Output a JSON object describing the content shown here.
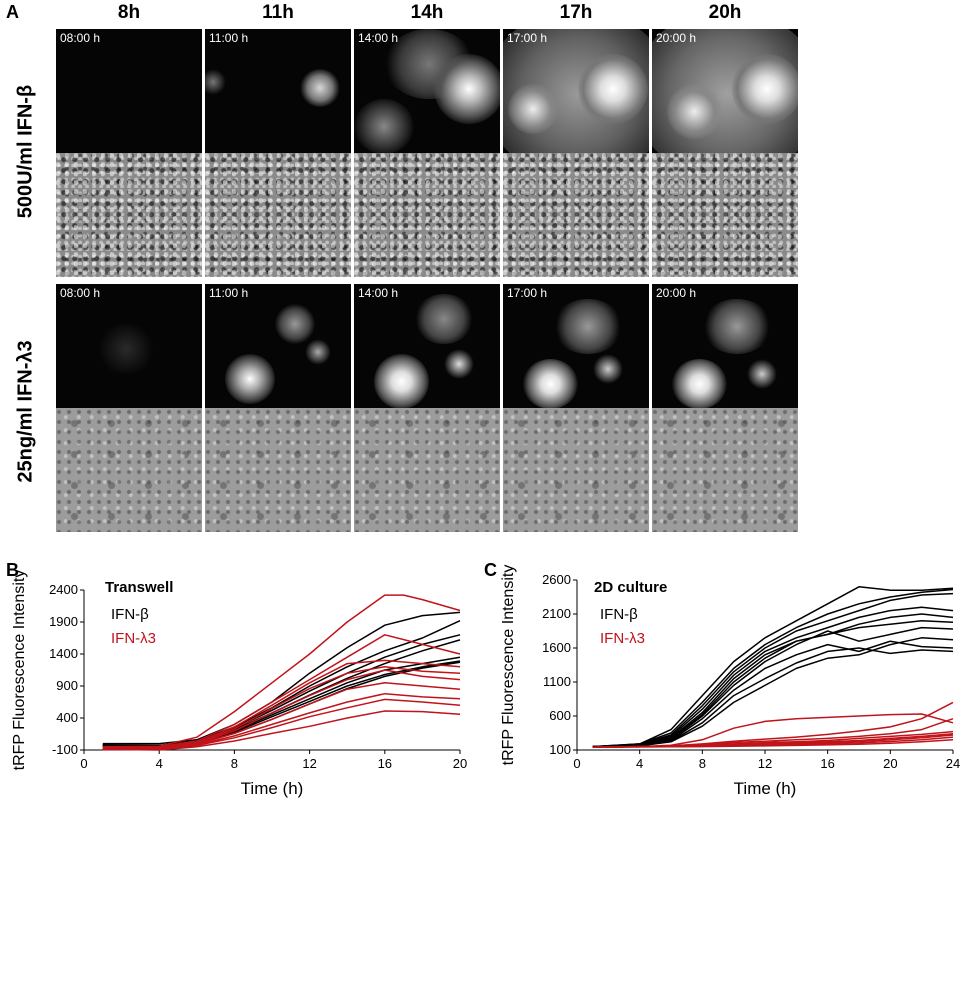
{
  "panel_a": {
    "letter": "A",
    "column_headers": [
      "8h",
      "11h",
      "14h",
      "17h",
      "20h"
    ],
    "row_labels": [
      "500U/ml IFN-β",
      "25ng/ml IFN-λ3"
    ],
    "time_labels": [
      "08:00 h",
      "11:00 h",
      "14:00 h",
      "17:00 h",
      "20:00 h"
    ]
  },
  "chart_data": [
    {
      "panel": "B",
      "type": "line",
      "title": "Transwell",
      "xlabel": "Time (h)",
      "ylabel": "tRFP Fluorescence Intensity",
      "xlim": [
        0,
        20
      ],
      "ylim": [
        -100,
        2400
      ],
      "xticks": [
        0,
        4,
        8,
        12,
        16,
        20
      ],
      "yticks": [
        -100,
        400,
        900,
        1400,
        1900,
        2400
      ],
      "legend": [
        {
          "label": "IFN-β",
          "color": "#000000"
        },
        {
          "label": "IFN-λ3",
          "color": "#c0141b"
        }
      ],
      "series": [
        {
          "name": "IFN-β 1",
          "color": "#000000",
          "x": [
            1,
            4,
            6,
            8,
            10,
            12,
            14,
            16,
            18,
            20
          ],
          "y": [
            0,
            0,
            60,
            300,
            650,
            1100,
            1500,
            1850,
            2000,
            2050
          ]
        },
        {
          "name": "IFN-β 2",
          "color": "#000000",
          "x": [
            1,
            4,
            6,
            8,
            10,
            12,
            14,
            16,
            18,
            20
          ],
          "y": [
            -20,
            -30,
            40,
            260,
            560,
            900,
            1200,
            1450,
            1650,
            1920
          ]
        },
        {
          "name": "IFN-β 3",
          "color": "#000000",
          "x": [
            1,
            4,
            6,
            8,
            10,
            12,
            14,
            16,
            18,
            20
          ],
          "y": [
            -30,
            -30,
            30,
            240,
            520,
            820,
            1100,
            1350,
            1550,
            1700
          ]
        },
        {
          "name": "IFN-β 4",
          "color": "#000000",
          "x": [
            1,
            4,
            6,
            8,
            10,
            12,
            14,
            16,
            18,
            20
          ],
          "y": [
            -40,
            -40,
            20,
            220,
            480,
            760,
            1020,
            1250,
            1450,
            1620
          ]
        },
        {
          "name": "IFN-β 5",
          "color": "#000000",
          "x": [
            1,
            4,
            6,
            8,
            10,
            12,
            14,
            16,
            18,
            20
          ],
          "y": [
            -20,
            -40,
            20,
            200,
            450,
            700,
            950,
            1150,
            1250,
            1350
          ]
        },
        {
          "name": "IFN-β 6",
          "color": "#000000",
          "x": [
            1,
            4,
            6,
            8,
            10,
            12,
            14,
            16,
            18,
            20
          ],
          "y": [
            -40,
            -40,
            10,
            180,
            420,
            660,
            900,
            1080,
            1200,
            1290
          ]
        },
        {
          "name": "IFN-β 7",
          "color": "#000000",
          "x": [
            1,
            4,
            6,
            8,
            10,
            12,
            14,
            16,
            18,
            20
          ],
          "y": [
            -50,
            -50,
            0,
            160,
            380,
            620,
            860,
            1050,
            1180,
            1270
          ]
        },
        {
          "name": "IFN-λ3 1",
          "color": "#c0141b",
          "x": [
            1,
            4,
            6,
            8,
            10,
            12,
            14,
            16,
            17,
            18,
            20
          ],
          "y": [
            -50,
            -40,
            100,
            500,
            950,
            1400,
            1900,
            2320,
            2320,
            2250,
            2080
          ]
        },
        {
          "name": "IFN-λ3 2",
          "color": "#c0141b",
          "x": [
            1,
            4,
            6,
            8,
            10,
            12,
            14,
            16,
            18,
            20
          ],
          "y": [
            -60,
            -50,
            40,
            300,
            650,
            1000,
            1350,
            1700,
            1550,
            1400
          ]
        },
        {
          "name": "IFN-λ3 3",
          "color": "#c0141b",
          "x": [
            1,
            4,
            6,
            8,
            10,
            12,
            14,
            16,
            18,
            20
          ],
          "y": [
            -70,
            -60,
            20,
            260,
            600,
            950,
            1250,
            1300,
            1250,
            1200
          ]
        },
        {
          "name": "IFN-λ3 4",
          "color": "#c0141b",
          "x": [
            1,
            4,
            6,
            8,
            10,
            12,
            14,
            16,
            18,
            20
          ],
          "y": [
            -80,
            -70,
            10,
            230,
            550,
            860,
            1100,
            1200,
            1130,
            1100
          ]
        },
        {
          "name": "IFN-λ3 5",
          "color": "#c0141b",
          "x": [
            1,
            4,
            6,
            8,
            10,
            12,
            14,
            16,
            18,
            20
          ],
          "y": [
            -80,
            -80,
            0,
            200,
            480,
            750,
            1000,
            1150,
            1050,
            1000
          ]
        },
        {
          "name": "IFN-λ3 6",
          "color": "#c0141b",
          "x": [
            1,
            4,
            6,
            8,
            10,
            12,
            14,
            16,
            18,
            20
          ],
          "y": [
            -80,
            -80,
            -10,
            160,
            380,
            620,
            850,
            950,
            900,
            850
          ]
        },
        {
          "name": "IFN-λ3 7",
          "color": "#c0141b",
          "x": [
            1,
            4,
            6,
            8,
            10,
            12,
            14,
            16,
            18,
            20
          ],
          "y": [
            -90,
            -90,
            -20,
            120,
            300,
            480,
            650,
            780,
            730,
            700
          ]
        },
        {
          "name": "IFN-λ3 8",
          "color": "#c0141b",
          "x": [
            1,
            4,
            6,
            8,
            10,
            12,
            14,
            16,
            18,
            20
          ],
          "y": [
            -90,
            -90,
            -30,
            90,
            250,
            420,
            560,
            690,
            650,
            600
          ]
        },
        {
          "name": "IFN-λ3 9",
          "color": "#c0141b",
          "x": [
            1,
            4,
            6,
            8,
            10,
            12,
            14,
            16,
            18,
            20
          ],
          "y": [
            -90,
            -100,
            -50,
            40,
            160,
            270,
            400,
            510,
            500,
            460
          ]
        }
      ]
    },
    {
      "panel": "C",
      "type": "line",
      "title": "2D culture",
      "xlabel": "Time (h)",
      "ylabel": "tRFP Fluorescence Intensity",
      "xlim": [
        0,
        24
      ],
      "ylim": [
        100,
        2600
      ],
      "xticks": [
        0,
        4,
        8,
        12,
        16,
        20,
        24
      ],
      "yticks": [
        100,
        600,
        1100,
        1600,
        2100,
        2600
      ],
      "legend": [
        {
          "label": "IFN-β",
          "color": "#000000"
        },
        {
          "label": "IFN-λ3",
          "color": "#c0141b"
        }
      ],
      "series": [
        {
          "name": "IFN-β 1",
          "color": "#000000",
          "x": [
            1,
            4,
            6,
            8,
            10,
            12,
            14,
            16,
            18,
            20,
            22,
            24
          ],
          "y": [
            150,
            190,
            400,
            900,
            1400,
            1750,
            2000,
            2250,
            2500,
            2450,
            2450,
            2480
          ]
        },
        {
          "name": "IFN-β 2",
          "color": "#000000",
          "x": [
            1,
            4,
            6,
            8,
            10,
            12,
            14,
            16,
            18,
            20,
            22,
            24
          ],
          "y": [
            150,
            190,
            350,
            800,
            1300,
            1650,
            1900,
            2100,
            2250,
            2350,
            2420,
            2460
          ]
        },
        {
          "name": "IFN-β 3",
          "color": "#000000",
          "x": [
            1,
            4,
            6,
            8,
            10,
            12,
            14,
            16,
            18,
            20,
            22,
            24
          ],
          "y": [
            150,
            180,
            320,
            750,
            1250,
            1600,
            1850,
            2000,
            2150,
            2300,
            2380,
            2400
          ]
        },
        {
          "name": "IFN-β 4",
          "color": "#000000",
          "x": [
            1,
            4,
            6,
            8,
            10,
            12,
            14,
            16,
            18,
            20,
            22,
            24
          ],
          "y": [
            150,
            180,
            300,
            700,
            1200,
            1550,
            1750,
            1900,
            2050,
            2150,
            2200,
            2150
          ]
        },
        {
          "name": "IFN-β 5",
          "color": "#000000",
          "x": [
            1,
            4,
            6,
            8,
            10,
            12,
            14,
            16,
            18,
            20,
            22,
            24
          ],
          "y": [
            150,
            170,
            280,
            650,
            1150,
            1500,
            1700,
            1800,
            1950,
            2050,
            2100,
            2050
          ]
        },
        {
          "name": "IFN-β 6",
          "color": "#000000",
          "x": [
            1,
            4,
            6,
            8,
            10,
            12,
            14,
            16,
            18,
            20,
            22,
            24
          ],
          "y": [
            150,
            170,
            260,
            620,
            1100,
            1450,
            1700,
            1800,
            1900,
            1950,
            2000,
            1980
          ]
        },
        {
          "name": "IFN-β 7",
          "color": "#000000",
          "x": [
            1,
            4,
            6,
            8,
            10,
            12,
            14,
            16,
            18,
            20,
            22,
            24
          ],
          "y": [
            150,
            170,
            250,
            600,
            1050,
            1400,
            1650,
            1850,
            1700,
            1800,
            1900,
            1880
          ]
        },
        {
          "name": "IFN-β 8",
          "color": "#000000",
          "x": [
            1,
            4,
            6,
            8,
            10,
            12,
            14,
            16,
            18,
            20,
            22,
            24
          ],
          "y": [
            150,
            165,
            240,
            560,
            980,
            1300,
            1500,
            1650,
            1550,
            1700,
            1620,
            1600
          ]
        },
        {
          "name": "IFN-β 9",
          "color": "#000000",
          "x": [
            1,
            4,
            6,
            8,
            10,
            12,
            14,
            16,
            18,
            20,
            22,
            24
          ],
          "y": [
            150,
            165,
            230,
            500,
            900,
            1150,
            1380,
            1550,
            1600,
            1520,
            1570,
            1550
          ]
        },
        {
          "name": "IFN-β 10",
          "color": "#000000",
          "x": [
            1,
            4,
            6,
            8,
            10,
            12,
            14,
            16,
            18,
            20,
            22,
            24
          ],
          "y": [
            150,
            160,
            220,
            450,
            800,
            1050,
            1300,
            1450,
            1500,
            1650,
            1750,
            1720
          ]
        },
        {
          "name": "IFN-λ3 1",
          "color": "#c0141b",
          "x": [
            1,
            4,
            6,
            8,
            10,
            12,
            14,
            16,
            18,
            20,
            22,
            24
          ],
          "y": [
            140,
            150,
            170,
            250,
            420,
            520,
            560,
            580,
            600,
            620,
            630,
            500
          ]
        },
        {
          "name": "IFN-λ3 2",
          "color": "#c0141b",
          "x": [
            1,
            4,
            6,
            8,
            10,
            12,
            14,
            16,
            18,
            20,
            22,
            24
          ],
          "y": [
            140,
            150,
            160,
            190,
            230,
            260,
            290,
            330,
            380,
            440,
            560,
            800
          ]
        },
        {
          "name": "IFN-λ3 3",
          "color": "#c0141b",
          "x": [
            1,
            4,
            6,
            8,
            10,
            12,
            14,
            16,
            18,
            20,
            22,
            24
          ],
          "y": [
            140,
            150,
            160,
            180,
            210,
            230,
            250,
            270,
            300,
            340,
            400,
            560
          ]
        },
        {
          "name": "IFN-λ3 4",
          "color": "#c0141b",
          "x": [
            1,
            4,
            6,
            8,
            10,
            12,
            14,
            16,
            18,
            20,
            22,
            24
          ],
          "y": [
            140,
            150,
            155,
            170,
            190,
            210,
            220,
            240,
            270,
            300,
            330,
            370
          ]
        },
        {
          "name": "IFN-λ3 5",
          "color": "#c0141b",
          "x": [
            1,
            4,
            6,
            8,
            10,
            12,
            14,
            16,
            18,
            20,
            22,
            24
          ],
          "y": [
            140,
            150,
            155,
            165,
            180,
            195,
            205,
            220,
            240,
            270,
            300,
            340
          ]
        },
        {
          "name": "IFN-λ3 6",
          "color": "#c0141b",
          "x": [
            1,
            4,
            6,
            8,
            10,
            12,
            14,
            16,
            18,
            20,
            22,
            24
          ],
          "y": [
            140,
            148,
            150,
            160,
            170,
            180,
            190,
            205,
            225,
            250,
            280,
            320
          ]
        },
        {
          "name": "IFN-λ3 7",
          "color": "#c0141b",
          "x": [
            1,
            4,
            6,
            8,
            10,
            12,
            14,
            16,
            18,
            20,
            22,
            24
          ],
          "y": [
            140,
            145,
            148,
            155,
            162,
            170,
            178,
            190,
            205,
            225,
            250,
            290
          ]
        },
        {
          "name": "IFN-λ3 8",
          "color": "#c0141b",
          "x": [
            1,
            4,
            6,
            8,
            10,
            12,
            14,
            16,
            18,
            20,
            22,
            24
          ],
          "y": [
            140,
            145,
            148,
            150,
            155,
            160,
            168,
            175,
            185,
            200,
            220,
            250
          ]
        }
      ]
    }
  ]
}
